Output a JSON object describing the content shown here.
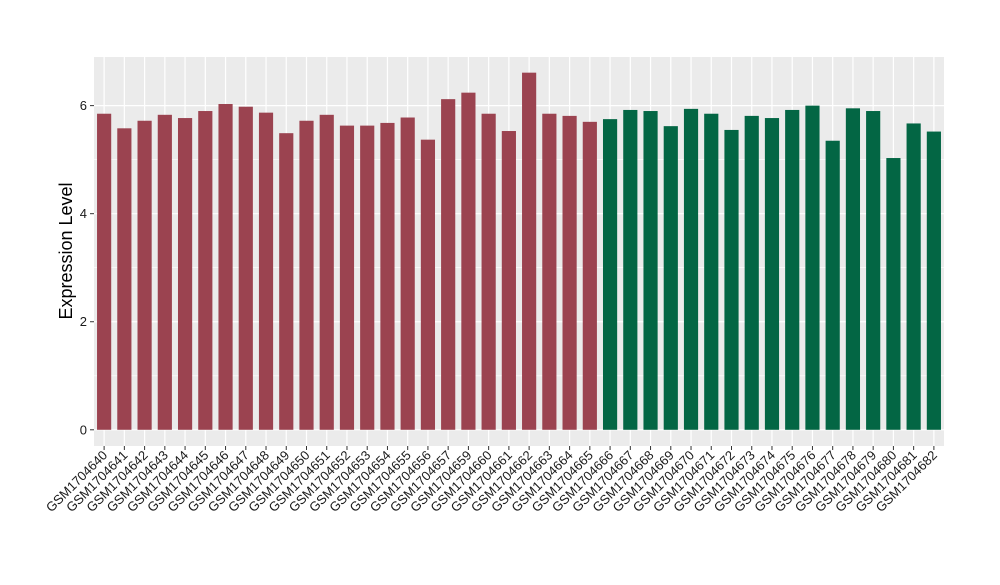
{
  "chart_data": {
    "type": "bar",
    "title": "",
    "xlabel": "",
    "ylabel": "Expression Level",
    "ylim": [
      -0.3,
      6.9
    ],
    "yticks": [
      0,
      2,
      4,
      6
    ],
    "grid": true,
    "background": "#ebebeb",
    "grid_color": "#ffffff",
    "colors": {
      "group1": "#9b4350",
      "group2": "#036644"
    },
    "categories": [
      "GSM1704640",
      "GSM1704641",
      "GSM1704642",
      "GSM1704643",
      "GSM1704644",
      "GSM1704645",
      "GSM1704646",
      "GSM1704647",
      "GSM1704648",
      "GSM1704649",
      "GSM1704650",
      "GSM1704651",
      "GSM1704652",
      "GSM1704653",
      "GSM1704654",
      "GSM1704655",
      "GSM1704656",
      "GSM1704657",
      "GSM1704659",
      "GSM1704660",
      "GSM1704661",
      "GSM1704662",
      "GSM1704663",
      "GSM1704664",
      "GSM1704665",
      "GSM1704666",
      "GSM1704667",
      "GSM1704668",
      "GSM1704669",
      "GSM1704670",
      "GSM1704671",
      "GSM1704672",
      "GSM1704673",
      "GSM1704674",
      "GSM1704675",
      "GSM1704676",
      "GSM1704677",
      "GSM1704678",
      "GSM1704679",
      "GSM1704680",
      "GSM1704681",
      "GSM1704682"
    ],
    "values": [
      5.85,
      5.58,
      5.72,
      5.83,
      5.77,
      5.9,
      6.03,
      5.98,
      5.87,
      5.49,
      5.72,
      5.83,
      5.63,
      5.63,
      5.68,
      5.78,
      5.37,
      6.12,
      6.24,
      5.85,
      5.53,
      6.61,
      5.85,
      5.81,
      5.7,
      5.75,
      5.92,
      5.9,
      5.62,
      5.94,
      5.85,
      5.55,
      5.81,
      5.77,
      5.92,
      6.0,
      5.35,
      5.95,
      5.9,
      5.03,
      5.67,
      5.52
    ],
    "groups": [
      "group1",
      "group1",
      "group1",
      "group1",
      "group1",
      "group1",
      "group1",
      "group1",
      "group1",
      "group1",
      "group1",
      "group1",
      "group1",
      "group1",
      "group1",
      "group1",
      "group1",
      "group1",
      "group1",
      "group1",
      "group1",
      "group1",
      "group1",
      "group1",
      "group1",
      "group2",
      "group2",
      "group2",
      "group2",
      "group2",
      "group2",
      "group2",
      "group2",
      "group2",
      "group2",
      "group2",
      "group2",
      "group2",
      "group2",
      "group2",
      "group2",
      "group2"
    ]
  }
}
